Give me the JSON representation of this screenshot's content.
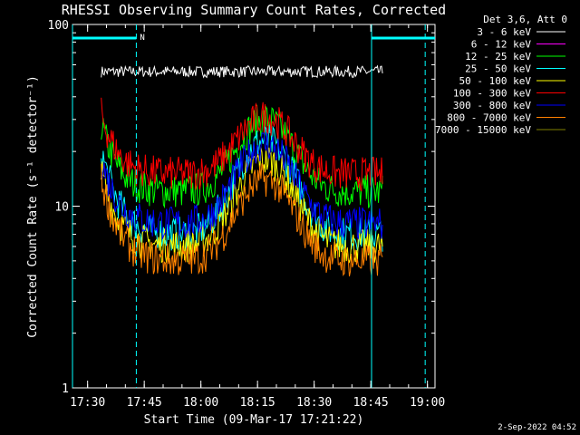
{
  "chart_data": {
    "type": "line",
    "title": "RHESSI Observing Summary Count Rates, Corrected",
    "xlabel": "Start Time (09-Mar-17 17:21:22)",
    "ylabel": "Corrected Count Rate (s⁻¹ detector⁻¹)",
    "y_scale": "log",
    "ylim": [
      1,
      100
    ],
    "xlim_minutes_after_1721": [
      5,
      101
    ],
    "x_tick_labels": [
      "17:30",
      "17:45",
      "18:00",
      "18:15",
      "18:30",
      "18:45",
      "19:00"
    ],
    "x_tick_minutes": [
      9,
      24,
      39,
      54,
      69,
      84,
      99
    ],
    "y_tick_labels": [
      "1",
      "10",
      "100"
    ],
    "y_tick_values": [
      1,
      10,
      100
    ],
    "legend_header": "Det 3,6, Att 0",
    "legend_position": "top-right",
    "series": [
      {
        "name": "3 - 6 keV",
        "color": "#ffffff",
        "base": 55,
        "amp": 0,
        "end": 50
      },
      {
        "name": "6 - 12 keV",
        "color": "#ff00ff",
        "base": 0,
        "amp": 0,
        "end": 0
      },
      {
        "name": "12 - 25 keV",
        "color": "#00ff00",
        "base": 12,
        "amp": 18,
        "start": 28,
        "end": 12
      },
      {
        "name": "25 - 50 keV",
        "color": "#00ffff",
        "base": 7,
        "amp": 16,
        "start": 20,
        "end": 7
      },
      {
        "name": "50 - 100 keV",
        "color": "#ffff00",
        "base": 6,
        "amp": 12,
        "start": 15,
        "end": 6
      },
      {
        "name": "100 - 300 keV",
        "color": "#ff0000",
        "base": 15,
        "amp": 16,
        "start": 32,
        "end": 15
      },
      {
        "name": "300 - 800 keV",
        "color": "#0000ff",
        "base": 8,
        "amp": 14,
        "start": 18,
        "end": 8
      },
      {
        "name": "800 - 7000 keV",
        "color": "#ff8000",
        "base": 5,
        "amp": 9,
        "start": 14,
        "end": 5
      },
      {
        "name": "7000 - 15000 keV",
        "color": "#808000",
        "base": 0,
        "amp": 0,
        "end": 0
      }
    ],
    "flare_peak_minute": 56,
    "data_span_minutes": [
      12.6,
      87.1
    ],
    "night_intervals_minutes": [
      [
        5,
        21.9
      ],
      [
        84.2,
        101
      ]
    ],
    "saa_marker_label": "N",
    "cyan_solid_line_minutes": [
      5,
      84.2
    ],
    "cyan_dashed_line_minutes": [
      21.9,
      98.4
    ]
  },
  "timestamp": "2-Sep-2022 04:52"
}
